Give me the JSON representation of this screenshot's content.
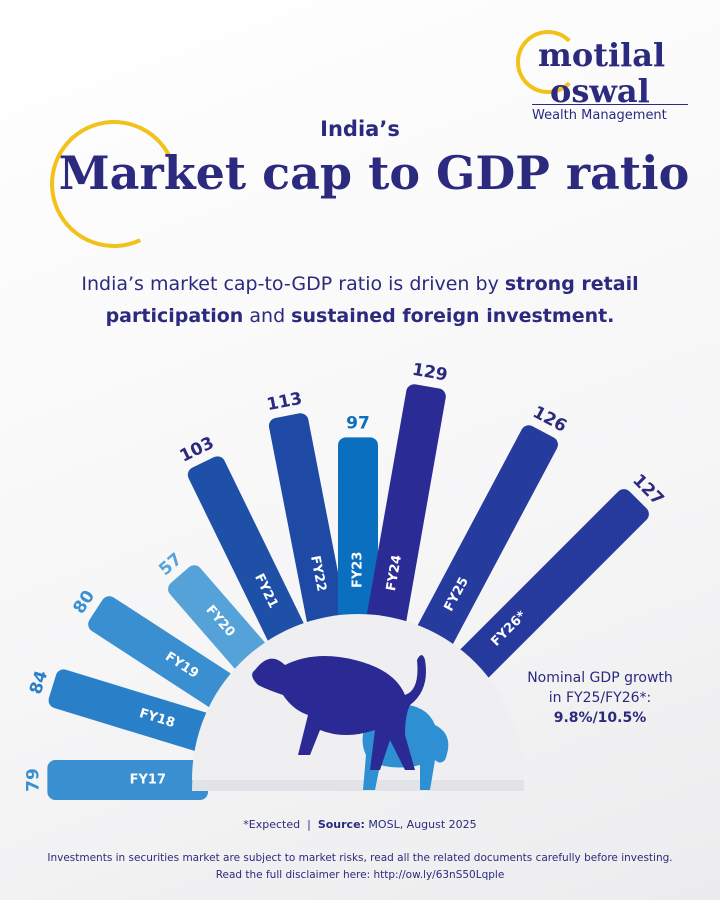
{
  "logo": {
    "line1": "motilal",
    "line2": "oswal",
    "tagline": "Wealth Management"
  },
  "header": {
    "kicker": "India’s",
    "title": "Market cap to GDP ratio"
  },
  "subtitle": {
    "part1": "India’s market cap-to-GDP ratio is driven by ",
    "bold1": "strong retail participation",
    "part2": " and ",
    "bold2": "sustained foreign investment."
  },
  "chart_data": {
    "type": "bar",
    "layout": "radial",
    "categories": [
      "FY17",
      "FY18",
      "FY19",
      "FY20",
      "FY21",
      "FY22",
      "FY23",
      "FY24",
      "FY25",
      "FY26*"
    ],
    "values": [
      79,
      84,
      80,
      57,
      103,
      113,
      97,
      129,
      126,
      127
    ],
    "colors": [
      "#3a8fd0",
      "#2a80c8",
      "#3a8fd0",
      "#55a2d8",
      "#1f50a8",
      "#1e4aa6",
      "#0a6fbf",
      "#2a2b94",
      "#263b9e",
      "#253a9c"
    ],
    "label_colors": [
      "#3a8fd0",
      "#2a80c8",
      "#3a8fd0",
      "#55a2d8",
      "#2b2a7e",
      "#2b2a7e",
      "#0a6fbf",
      "#2b2a7e",
      "#2b2a7e",
      "#2b2a7e"
    ]
  },
  "center_icon": "bull-and-bear-icon",
  "note": {
    "line1": "Nominal GDP growth",
    "line2": "in FY25/FY26*:",
    "value": "9.8%/10.5%"
  },
  "footer": {
    "expected": "*Expected  |  ",
    "source_label": "Source:",
    "source": " MOSL, August 2025",
    "disclaimer1": "Investments in securities market are subject to market risks, read all the related documents carefully before investing.",
    "disclaimer2": "Read the full disclaimer here: http://ow.ly/63nS50Lqple"
  }
}
